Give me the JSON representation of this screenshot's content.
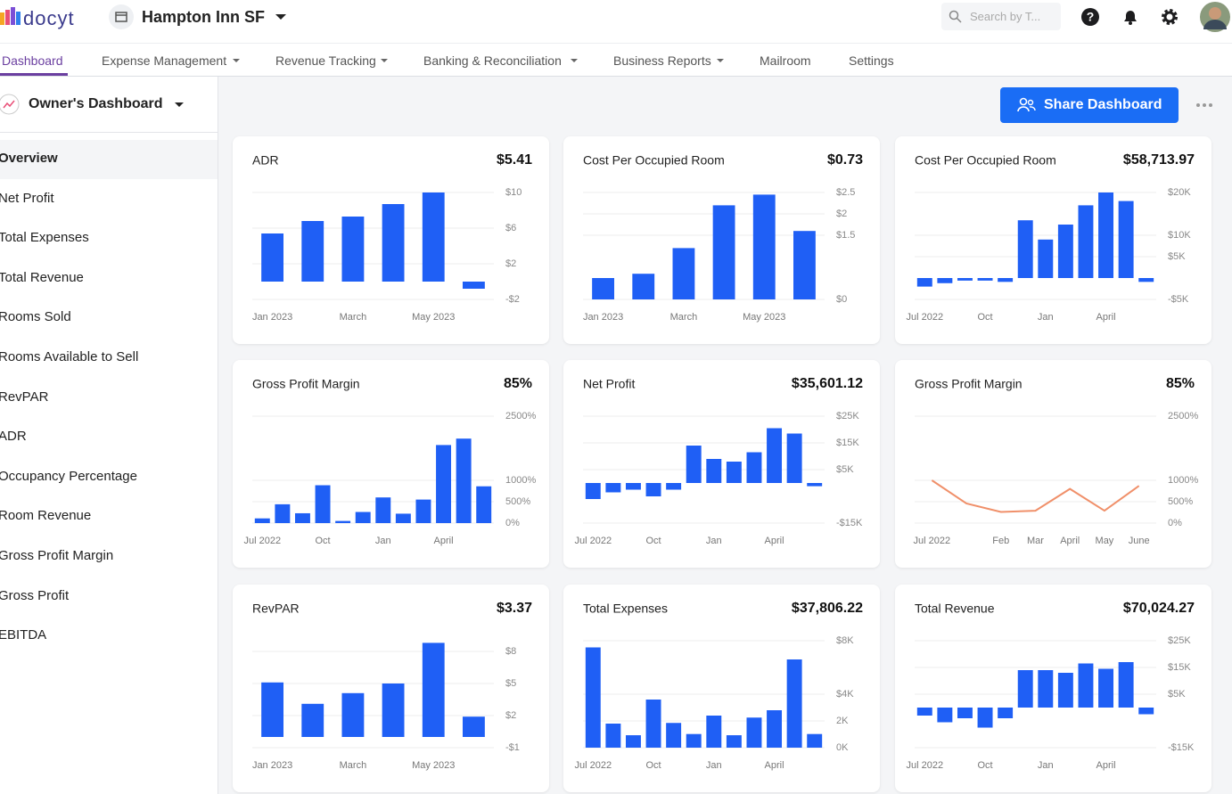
{
  "header": {
    "logo": "docyt",
    "property": "Hampton Inn SF",
    "search_placeholder": "Search by T..."
  },
  "nav": [
    "Dashboard",
    "Expense Management",
    "Revenue Tracking",
    "Banking & Reconciliation",
    "Business Reports",
    "Mailroom",
    "Settings"
  ],
  "sidebar": {
    "title": "Owner's Dashboard",
    "items": [
      "Overview",
      "Net Profit",
      "Total Expenses",
      "Total Revenue",
      "Rooms Sold",
      "Rooms Available to Sell",
      "RevPAR",
      "ADR",
      "Occupancy Percentage",
      "Room Revenue",
      "Gross Profit Margin",
      "Gross Profit",
      "EBITDA"
    ]
  },
  "share_button": "Share Dashboard",
  "chart_data": [
    {
      "type": "bar",
      "title": "ADR",
      "total": "$5.41",
      "color": "#1f5ff5",
      "categories": [
        "Jan 2023",
        null,
        "March",
        null,
        "May 2023",
        null
      ],
      "values": [
        5.4,
        6.8,
        7.3,
        8.7,
        10,
        -0.8
      ],
      "ylim": [
        -2,
        10
      ],
      "yticks": [
        {
          "value": 10,
          "label": "$10"
        },
        {
          "value": 6,
          "label": "$6"
        },
        {
          "value": 2,
          "label": "$2"
        },
        {
          "value": -2,
          "label": "-$2"
        }
      ],
      "grid": true
    },
    {
      "type": "bar",
      "title": "Cost Per Occupied Room",
      "total": "$0.73",
      "color": "#1f5ff5",
      "categories": [
        "Jan 2023",
        null,
        "March",
        null,
        "May 2023",
        null
      ],
      "values": [
        0.5,
        0.6,
        1.2,
        2.2,
        2.45,
        1.6
      ],
      "ylim": [
        0,
        2.5
      ],
      "yticks": [
        {
          "value": 2.5,
          "label": "$2.5"
        },
        {
          "value": 2,
          "label": "$2"
        },
        {
          "value": 1.5,
          "label": "$1.5"
        },
        {
          "value": 0,
          "label": "$0"
        }
      ],
      "grid": true
    },
    {
      "type": "bar",
      "title": "Cost Per Occupied Room",
      "total": "$58,713.97",
      "color": "#1f5ff5",
      "categories": [
        "Jul 2022",
        null,
        null,
        "Oct",
        null,
        null,
        "Jan",
        null,
        null,
        "April",
        null,
        null
      ],
      "values": [
        -2000,
        -1200,
        -600,
        -600,
        -900,
        13500,
        9000,
        12500,
        17000,
        20000,
        18000,
        -900
      ],
      "ylim": [
        -5000,
        20000
      ],
      "yticks": [
        {
          "value": 20000,
          "label": "$20K"
        },
        {
          "value": 10000,
          "label": "$10K"
        },
        {
          "value": 5000,
          "label": "$5K"
        },
        {
          "value": -5000,
          "label": "-$5K"
        }
      ],
      "grid": true
    },
    {
      "type": "bar",
      "title": "Gross Profit Margin",
      "total": "85%",
      "color": "#1f5ff5",
      "categories": [
        "Jul 2022",
        null,
        null,
        "Oct",
        null,
        null,
        "Jan",
        null,
        null,
        "April",
        null,
        null
      ],
      "values": [
        110,
        440,
        230,
        885,
        50,
        260,
        600,
        220,
        550,
        1825,
        1975,
        860
      ],
      "ylim": [
        0,
        2500
      ],
      "yticks": [
        {
          "value": 2500,
          "label": "2500%"
        },
        {
          "value": 1000,
          "label": "1000%"
        },
        {
          "value": 500,
          "label": "500%"
        },
        {
          "value": 0,
          "label": "0%"
        }
      ],
      "grid": true
    },
    {
      "type": "bar",
      "title": "Net Profit",
      "total": "$35,601.12",
      "color": "#1f5ff5",
      "categories": [
        "Jul 2022",
        null,
        null,
        "Oct",
        null,
        null,
        "Jan",
        null,
        null,
        "April",
        null,
        null
      ],
      "values": [
        -6000,
        -3500,
        -2500,
        -5000,
        -2500,
        14000,
        9000,
        8000,
        11500,
        20500,
        18500,
        -1200
      ],
      "ylim": [
        -15000,
        25000
      ],
      "yticks": [
        {
          "value": 25000,
          "label": "$25K"
        },
        {
          "value": 15000,
          "label": "$15K"
        },
        {
          "value": 5000,
          "label": "$5K"
        },
        {
          "value": -15000,
          "label": "-$15K"
        }
      ],
      "grid": true
    },
    {
      "type": "line",
      "title": "Gross Profit Margin",
      "total": "85%",
      "color": "#f0906a",
      "categories": [
        "Jul 2022",
        null,
        "Feb",
        "Mar",
        "April",
        "May",
        "June"
      ],
      "values": [
        1000,
        460,
        260,
        290,
        800,
        290,
        870
      ],
      "ylim": [
        0,
        2500
      ],
      "yticks": [
        {
          "value": 2500,
          "label": "2500%"
        },
        {
          "value": 1000,
          "label": "1000%"
        },
        {
          "value": 500,
          "label": "500%"
        },
        {
          "value": 0,
          "label": "0%"
        }
      ],
      "grid": true
    },
    {
      "type": "bar",
      "title": "RevPAR",
      "total": "$3.37",
      "color": "#1f5ff5",
      "categories": [
        "Jan 2023",
        null,
        "March",
        null,
        "May 2023",
        null
      ],
      "values": [
        5.1,
        3.1,
        4.1,
        5.0,
        8.8,
        1.9
      ],
      "ylim": [
        -1,
        9
      ],
      "yticks": [
        {
          "value": 8,
          "label": "$8"
        },
        {
          "value": 5,
          "label": "$5"
        },
        {
          "value": 2,
          "label": "$2"
        },
        {
          "value": -1,
          "label": "-$1"
        }
      ],
      "grid": true
    },
    {
      "type": "bar",
      "title": "Total Expenses",
      "total": "$37,806.22",
      "color": "#1f5ff5",
      "categories": [
        "Jul 2022",
        null,
        null,
        "Oct",
        null,
        null,
        "Jan",
        null,
        null,
        "April",
        null,
        null
      ],
      "values": [
        7500,
        1800,
        930,
        3600,
        1850,
        1020,
        2400,
        930,
        2250,
        2800,
        6600,
        1020
      ],
      "ylim": [
        0,
        8000
      ],
      "yticks": [
        {
          "value": 8000,
          "label": "$8K"
        },
        {
          "value": 4000,
          "label": "$4K"
        },
        {
          "value": 2000,
          "label": "2K"
        },
        {
          "value": 0,
          "label": "0K"
        }
      ],
      "grid": true
    },
    {
      "type": "bar",
      "title": "Total Revenue",
      "total": "$70,024.27",
      "color": "#1f5ff5",
      "categories": [
        "Jul 2022",
        null,
        null,
        "Oct",
        null,
        null,
        "Jan",
        null,
        null,
        "April",
        null,
        null
      ],
      "values": [
        -3000,
        -5500,
        -4000,
        -7500,
        -4000,
        14000,
        14000,
        13000,
        16500,
        14500,
        17000,
        -2500
      ],
      "ylim": [
        -15000,
        25000
      ],
      "yticks": [
        {
          "value": 25000,
          "label": "$25K"
        },
        {
          "value": 15000,
          "label": "$15K"
        },
        {
          "value": 5000,
          "label": "$5K"
        },
        {
          "value": -15000,
          "label": "-$15K"
        }
      ],
      "grid": true
    }
  ]
}
